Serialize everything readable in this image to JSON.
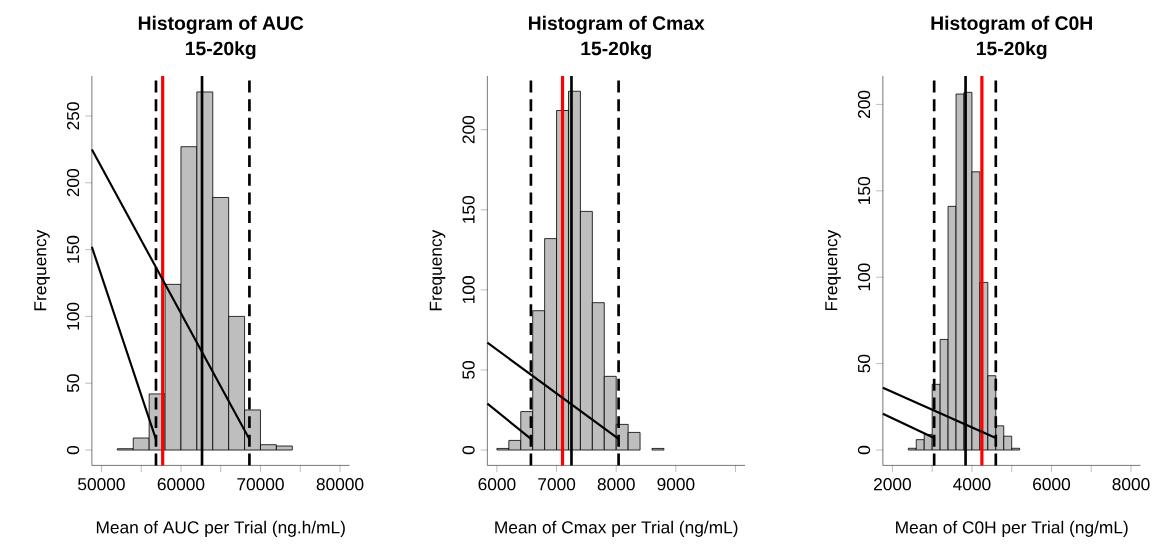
{
  "chart_data": [
    {
      "type": "histogram",
      "title": "Histogram of AUC",
      "subtitle": "15-20kg",
      "xlabel": "Mean of AUC per Trial (ng.h/mL)",
      "ylabel": "Frequency",
      "color": "#bebebe",
      "bins": [
        52000,
        54000,
        56000,
        58000,
        60000,
        62000,
        64000,
        66000,
        68000,
        70000,
        72000,
        74000
      ],
      "values": [
        1,
        9,
        42,
        124,
        227,
        268,
        189,
        100,
        30,
        4,
        3
      ],
      "xlim": [
        48800,
        81200
      ],
      "ylim": [
        -11.5,
        280
      ],
      "xticks": [
        50000,
        {
          "value": 55000,
          "label": null
        },
        60000,
        {
          "value": 65000,
          "label": null
        },
        70000,
        {
          "value": 75000,
          "label": null
        },
        80000
      ],
      "yticks": [
        0,
        50,
        100,
        150,
        200,
        250
      ],
      "ref_lines": [
        {
          "axis": "x",
          "value": 56860,
          "color": "#000000",
          "line_style": "dashed"
        },
        {
          "axis": "x",
          "value": 68610,
          "color": "#000000",
          "line_style": "dashed"
        },
        {
          "axis": "x",
          "value": 62650,
          "color": "#000000",
          "line_style": "solid"
        },
        {
          "axis": "x",
          "value": 57700,
          "color": "#ff0000",
          "line_style": "solid"
        }
      ],
      "series": [
        {
          "type": "line",
          "color": "#000000",
          "x": [
            48800,
            68610
          ],
          "values": [
            225,
            8
          ]
        },
        {
          "type": "line",
          "color": "#000000",
          "x": [
            48800,
            56860
          ],
          "values": [
            152,
            8
          ]
        }
      ]
    },
    {
      "type": "histogram",
      "title": "Histogram of Cmax",
      "subtitle": "15-20kg",
      "xlabel": "Mean of Cmax per Trial (ng/mL)",
      "ylabel": "Frequency",
      "color": "#bebebe",
      "bins": [
        6000,
        6200,
        6400,
        6600,
        6800,
        7000,
        7200,
        7400,
        7600,
        7800,
        8000,
        8200,
        8400,
        8600,
        8800
      ],
      "values": [
        1,
        6,
        24,
        87,
        132,
        212,
        224,
        149,
        92,
        46,
        16,
        11,
        0,
        1
      ],
      "xlim": [
        5840,
        10160
      ],
      "ylim": [
        -9.6,
        233.6
      ],
      "xticks": [
        6000,
        7000,
        8000,
        9000,
        {
          "value": 10000,
          "label": null
        }
      ],
      "yticks": [
        0,
        50,
        100,
        150,
        200
      ],
      "ref_lines": [
        {
          "axis": "x",
          "value": 6570,
          "color": "#000000",
          "line_style": "dashed"
        },
        {
          "axis": "x",
          "value": 8040,
          "color": "#000000",
          "line_style": "dashed"
        },
        {
          "axis": "x",
          "value": 7250,
          "color": "#000000",
          "line_style": "solid"
        },
        {
          "axis": "x",
          "value": 7100,
          "color": "#ff0000",
          "line_style": "solid"
        }
      ],
      "series": [
        {
          "type": "line",
          "color": "#000000",
          "x": [
            5840,
            8040
          ],
          "values": [
            67,
            7
          ]
        },
        {
          "type": "line",
          "color": "#000000",
          "x": [
            5840,
            6570
          ],
          "values": [
            29,
            7
          ]
        }
      ]
    },
    {
      "type": "histogram",
      "title": "Histogram of C0H",
      "subtitle": "15-20kg",
      "xlabel": "Mean of C0H per Trial (ng/mL)",
      "ylabel": "Frequency",
      "color": "#bebebe",
      "bins": [
        2400,
        2600,
        2800,
        3000,
        3200,
        3400,
        3600,
        3800,
        4000,
        4200,
        4400,
        4600,
        4800,
        5000,
        5200
      ],
      "values": [
        1,
        6,
        9,
        38,
        64,
        141,
        206,
        207,
        161,
        97,
        43,
        14,
        8,
        1
      ],
      "xlim": [
        1760,
        8240
      ],
      "ylim": [
        -8.9,
        216.5
      ],
      "xticks": [
        2000,
        {
          "value": 3000,
          "label": null
        },
        4000,
        {
          "value": 5000,
          "label": null
        },
        6000,
        {
          "value": 7000,
          "label": null
        },
        8000
      ],
      "yticks": [
        0,
        50,
        100,
        150,
        200
      ],
      "ref_lines": [
        {
          "axis": "x",
          "value": 3050,
          "color": "#000000",
          "line_style": "dashed"
        },
        {
          "axis": "x",
          "value": 4600,
          "color": "#000000",
          "line_style": "dashed"
        },
        {
          "axis": "x",
          "value": 3840,
          "color": "#000000",
          "line_style": "solid"
        },
        {
          "axis": "x",
          "value": 4250,
          "color": "#ff0000",
          "line_style": "solid"
        }
      ],
      "series": [
        {
          "type": "line",
          "color": "#000000",
          "x": [
            1760,
            4600
          ],
          "values": [
            36,
            7
          ]
        },
        {
          "type": "line",
          "color": "#000000",
          "x": [
            1760,
            3050
          ],
          "values": [
            21,
            7
          ]
        }
      ]
    }
  ]
}
